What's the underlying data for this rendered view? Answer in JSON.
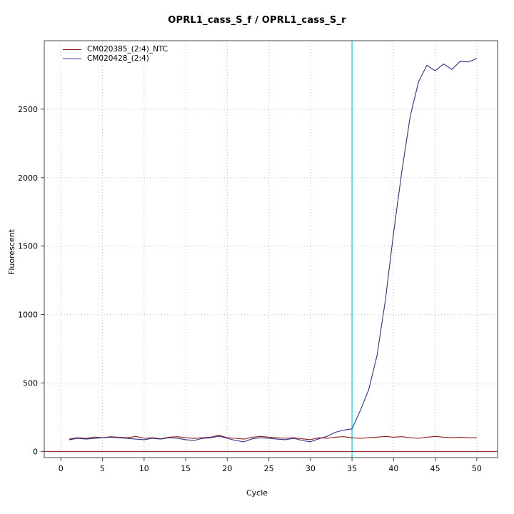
{
  "chart_data": {
    "type": "line",
    "title": "OPRL1_cass_S_f / OPRL1_cass_S_r",
    "xlabel": "Cycle",
    "ylabel": "Fluorescent",
    "xlim": [
      -2,
      52.5
    ],
    "ylim": [
      -45,
      3000
    ],
    "xticks": [
      0,
      5,
      10,
      15,
      20,
      25,
      30,
      35,
      40,
      45,
      50
    ],
    "yticks": [
      0,
      500,
      1000,
      1500,
      2000,
      2500
    ],
    "grid": true,
    "legend_position": "top-left",
    "threshold_line": {
      "y": 0,
      "color": "#8b1a1a"
    },
    "vline": {
      "x": 35,
      "color": "#00e5ee"
    },
    "x": [
      1,
      2,
      3,
      4,
      5,
      6,
      7,
      8,
      9,
      10,
      11,
      12,
      13,
      14,
      15,
      16,
      17,
      18,
      19,
      20,
      21,
      22,
      23,
      24,
      25,
      26,
      27,
      28,
      29,
      30,
      31,
      32,
      33,
      34,
      35,
      36,
      37,
      38,
      39,
      40,
      41,
      42,
      43,
      44,
      45,
      46,
      47,
      48,
      49,
      50
    ],
    "series": [
      {
        "name": "CM020385_(2:4)_NTC",
        "color": "#8b1a1a",
        "values": [
          90,
          100,
          95,
          105,
          100,
          108,
          103,
          100,
          110,
          96,
          100,
          92,
          104,
          108,
          100,
          95,
          100,
          104,
          118,
          100,
          96,
          90,
          104,
          110,
          104,
          100,
          96,
          100,
          92,
          86,
          100,
          96,
          104,
          108,
          100,
          96,
          100,
          104,
          110,
          104,
          108,
          100,
          96,
          104,
          110,
          104,
          100,
          104,
          100,
          100
        ]
      },
      {
        "name": "CM020428_(2:4)",
        "color": "#30308c",
        "values": [
          85,
          96,
          90,
          95,
          100,
          104,
          100,
          95,
          90,
          86,
          96,
          90,
          100,
          96,
          86,
          80,
          95,
          100,
          112,
          96,
          80,
          70,
          92,
          100,
          96,
          90,
          86,
          96,
          80,
          70,
          92,
          110,
          140,
          155,
          165,
          300,
          450,
          700,
          1100,
          1600,
          2050,
          2450,
          2700,
          2820,
          2780,
          2830,
          2790,
          2850,
          2845,
          2870
        ]
      }
    ]
  },
  "colors": {
    "grid": "#bdbdbd",
    "axis": "#000000",
    "box": "#444444"
  }
}
